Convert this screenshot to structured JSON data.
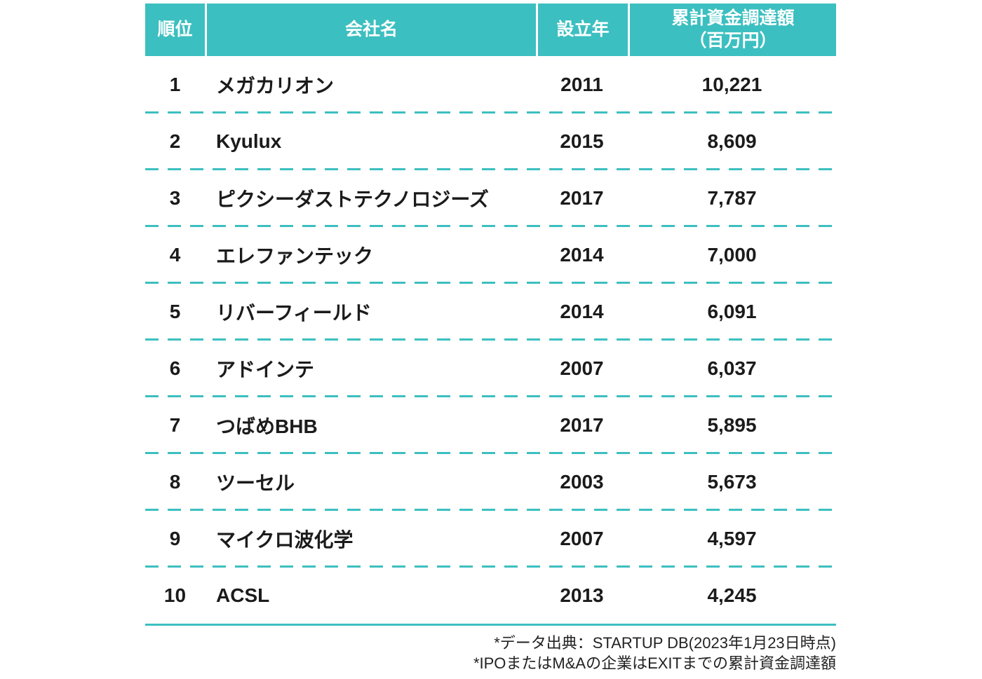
{
  "accent_color": "#3CBFC0",
  "table": {
    "headers": {
      "rank": "順位",
      "company": "会社名",
      "year": "設立年",
      "funding_line1": "累計資金調達額",
      "funding_line2": "（百万円）"
    },
    "rows": [
      {
        "rank": "1",
        "company": "メガカリオン",
        "year": "2011",
        "funding": "10,221"
      },
      {
        "rank": "2",
        "company": "Kyulux",
        "year": "2015",
        "funding": "8,609"
      },
      {
        "rank": "3",
        "company": "ピクシーダストテクノロジーズ",
        "year": "2017",
        "funding": "7,787"
      },
      {
        "rank": "4",
        "company": "エレファンテック",
        "year": "2014",
        "funding": "7,000"
      },
      {
        "rank": "5",
        "company": "リバーフィールド",
        "year": "2014",
        "funding": "6,091"
      },
      {
        "rank": "6",
        "company": "アドインテ",
        "year": "2007",
        "funding": "6,037"
      },
      {
        "rank": "7",
        "company": "つばめBHB",
        "year": "2017",
        "funding": "5,895"
      },
      {
        "rank": "8",
        "company": "ツーセル",
        "year": "2003",
        "funding": "5,673"
      },
      {
        "rank": "9",
        "company": "マイクロ波化学",
        "year": "2007",
        "funding": "4,597"
      },
      {
        "rank": "10",
        "company": "ACSL",
        "year": "2013",
        "funding": "4,245"
      }
    ]
  },
  "footer": {
    "line1": "*データ出典：STARTUP DB(2023年1月23日時点)",
    "line2": "*IPOまたはM&Aの企業はEXITまでの累計資金調達額"
  },
  "chart_data": {
    "type": "table",
    "title": "",
    "columns": [
      "順位",
      "会社名",
      "設立年",
      "累計資金調達額（百万円）"
    ],
    "rows": [
      [
        1,
        "メガカリオン",
        2011,
        10221
      ],
      [
        2,
        "Kyulux",
        2015,
        8609
      ],
      [
        3,
        "ピクシーダストテクノロジーズ",
        2017,
        7787
      ],
      [
        4,
        "エレファンテック",
        2014,
        7000
      ],
      [
        5,
        "リバーフィールド",
        2014,
        6091
      ],
      [
        6,
        "アドインテ",
        2007,
        6037
      ],
      [
        7,
        "つばめBHB",
        2017,
        5895
      ],
      [
        8,
        "ツーセル",
        2003,
        5673
      ],
      [
        9,
        "マイクロ波化学",
        2007,
        4597
      ],
      [
        10,
        "ACSL",
        2013,
        4245
      ]
    ],
    "notes": [
      "*データ出典：STARTUP DB(2023年1月23日時点)",
      "*IPOまたはM&Aの企業はEXITまでの累計資金調達額"
    ],
    "layout_hints": {
      "header_background": "#3CBFC0",
      "row_separator": "dashed teal",
      "numeric_alignment": "center",
      "grid": "horizontal-only"
    }
  }
}
